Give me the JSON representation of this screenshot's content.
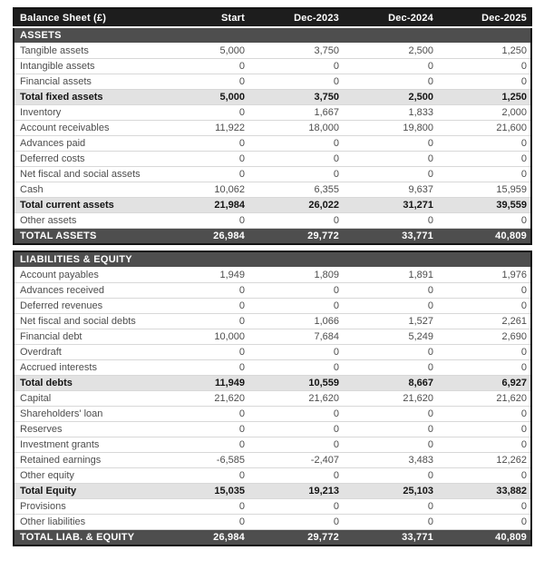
{
  "colors": {
    "header_bg": "#1d1d1d",
    "header_text": "#ffffff",
    "section_bg": "#4e4e4e",
    "section_text": "#ffffff",
    "subtotal_bg": "#e2e2e2",
    "subtotal_text": "#141414",
    "row_text": "#4d4d4d",
    "row_divider": "#d8d8d8",
    "outer_border": "#141414"
  },
  "table": {
    "title": "Balance Sheet (£)",
    "columns": [
      "Start",
      "Dec-2023",
      "Dec-2024",
      "Dec-2025"
    ],
    "sections": [
      {
        "name": "ASSETS",
        "rows": [
          {
            "label": "Tangible assets",
            "type": "normal",
            "values": [
              "5,000",
              "3,750",
              "2,500",
              "1,250"
            ]
          },
          {
            "label": "Intangible assets",
            "type": "normal",
            "values": [
              "0",
              "0",
              "0",
              "0"
            ]
          },
          {
            "label": "Financial assets",
            "type": "normal",
            "values": [
              "0",
              "0",
              "0",
              "0"
            ]
          },
          {
            "label": "Total fixed assets",
            "type": "subtotal",
            "values": [
              "5,000",
              "3,750",
              "2,500",
              "1,250"
            ]
          },
          {
            "label": "Inventory",
            "type": "normal",
            "values": [
              "0",
              "1,667",
              "1,833",
              "2,000"
            ]
          },
          {
            "label": "Account receivables",
            "type": "normal",
            "values": [
              "11,922",
              "18,000",
              "19,800",
              "21,600"
            ]
          },
          {
            "label": "Advances paid",
            "type": "normal",
            "values": [
              "0",
              "0",
              "0",
              "0"
            ]
          },
          {
            "label": "Deferred costs",
            "type": "normal",
            "values": [
              "0",
              "0",
              "0",
              "0"
            ]
          },
          {
            "label": "Net fiscal and social assets",
            "type": "normal",
            "values": [
              "0",
              "0",
              "0",
              "0"
            ]
          },
          {
            "label": "Cash",
            "type": "normal",
            "values": [
              "10,062",
              "6,355",
              "9,637",
              "15,959"
            ]
          },
          {
            "label": "Total current assets",
            "type": "subtotal",
            "values": [
              "21,984",
              "26,022",
              "31,271",
              "39,559"
            ]
          },
          {
            "label": "Other assets",
            "type": "normal",
            "values": [
              "0",
              "0",
              "0",
              "0"
            ]
          }
        ],
        "total": {
          "label": "TOTAL ASSETS",
          "values": [
            "26,984",
            "29,772",
            "33,771",
            "40,809"
          ]
        }
      },
      {
        "name": "LIABILITIES & EQUITY",
        "rows": [
          {
            "label": "Account payables",
            "type": "normal",
            "values": [
              "1,949",
              "1,809",
              "1,891",
              "1,976"
            ]
          },
          {
            "label": "Advances received",
            "type": "normal",
            "values": [
              "0",
              "0",
              "0",
              "0"
            ]
          },
          {
            "label": "Deferred revenues",
            "type": "normal",
            "values": [
              "0",
              "0",
              "0",
              "0"
            ]
          },
          {
            "label": "Net fiscal and social debts",
            "type": "normal",
            "values": [
              "0",
              "1,066",
              "1,527",
              "2,261"
            ]
          },
          {
            "label": "Financial debt",
            "type": "normal",
            "values": [
              "10,000",
              "7,684",
              "5,249",
              "2,690"
            ]
          },
          {
            "label": "Overdraft",
            "type": "normal",
            "values": [
              "0",
              "0",
              "0",
              "0"
            ]
          },
          {
            "label": "Accrued interests",
            "type": "normal",
            "values": [
              "0",
              "0",
              "0",
              "0"
            ]
          },
          {
            "label": "Total debts",
            "type": "subtotal",
            "values": [
              "11,949",
              "10,559",
              "8,667",
              "6,927"
            ]
          },
          {
            "label": "Capital",
            "type": "normal",
            "values": [
              "21,620",
              "21,620",
              "21,620",
              "21,620"
            ]
          },
          {
            "label": "Shareholders' loan",
            "type": "normal",
            "values": [
              "0",
              "0",
              "0",
              "0"
            ]
          },
          {
            "label": "Reserves",
            "type": "normal",
            "values": [
              "0",
              "0",
              "0",
              "0"
            ]
          },
          {
            "label": "Investment grants",
            "type": "normal",
            "values": [
              "0",
              "0",
              "0",
              "0"
            ]
          },
          {
            "label": "Retained earnings",
            "type": "normal",
            "values": [
              "-6,585",
              "-2,407",
              "3,483",
              "12,262"
            ]
          },
          {
            "label": "Other equity",
            "type": "normal",
            "values": [
              "0",
              "0",
              "0",
              "0"
            ]
          },
          {
            "label": "Total Equity",
            "type": "subtotal",
            "values": [
              "15,035",
              "19,213",
              "25,103",
              "33,882"
            ]
          },
          {
            "label": "Provisions",
            "type": "normal",
            "values": [
              "0",
              "0",
              "0",
              "0"
            ]
          },
          {
            "label": "Other liabilities",
            "type": "normal",
            "values": [
              "0",
              "0",
              "0",
              "0"
            ]
          }
        ],
        "total": {
          "label": "TOTAL LIAB. & EQUITY",
          "values": [
            "26,984",
            "29,772",
            "33,771",
            "40,809"
          ]
        }
      }
    ]
  }
}
